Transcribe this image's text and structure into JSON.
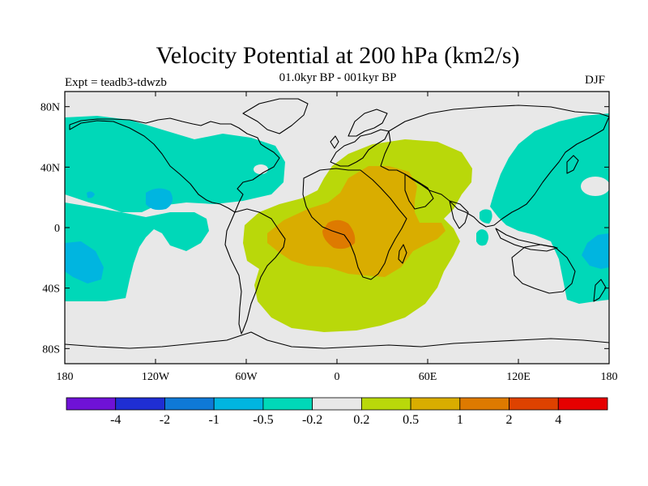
{
  "title": "Velocity Potential at 200 hPa (km2/s)",
  "subtitle": "01.0kyr BP - 001kyr BP",
  "left_label": "Expt = teadb3-tdwzb",
  "right_label": "DJF",
  "map": {
    "projection": "cylindrical-equidistant",
    "lon_range": [
      -180,
      180
    ],
    "lat_range": [
      -90,
      90
    ],
    "x_ticks": [
      {
        "lon": -180,
        "label": "180"
      },
      {
        "lon": -120,
        "label": "120W"
      },
      {
        "lon": -60,
        "label": "60W"
      },
      {
        "lon": 0,
        "label": "0"
      },
      {
        "lon": 60,
        "label": "60E"
      },
      {
        "lon": 120,
        "label": "120E"
      },
      {
        "lon": 180,
        "label": "180"
      }
    ],
    "y_ticks": [
      {
        "lat": 80,
        "label": "80N"
      },
      {
        "lat": 40,
        "label": "40N"
      },
      {
        "lat": 0,
        "label": "0"
      },
      {
        "lat": -40,
        "label": "40S"
      },
      {
        "lat": -80,
        "label": "80S"
      }
    ]
  },
  "colorbar": {
    "colors": [
      "#6f12d6",
      "#1f2ed3",
      "#0f79d6",
      "#00b5e0",
      "#00d8b8",
      "#e8e8e8",
      "#b9d80a",
      "#d9ad00",
      "#de7a00",
      "#de4200",
      "#e60000"
    ],
    "labels": [
      "-4",
      "-2",
      "-1",
      "-0.5",
      "-0.2",
      "0.2",
      "0.5",
      "1",
      "2",
      "4"
    ]
  }
}
